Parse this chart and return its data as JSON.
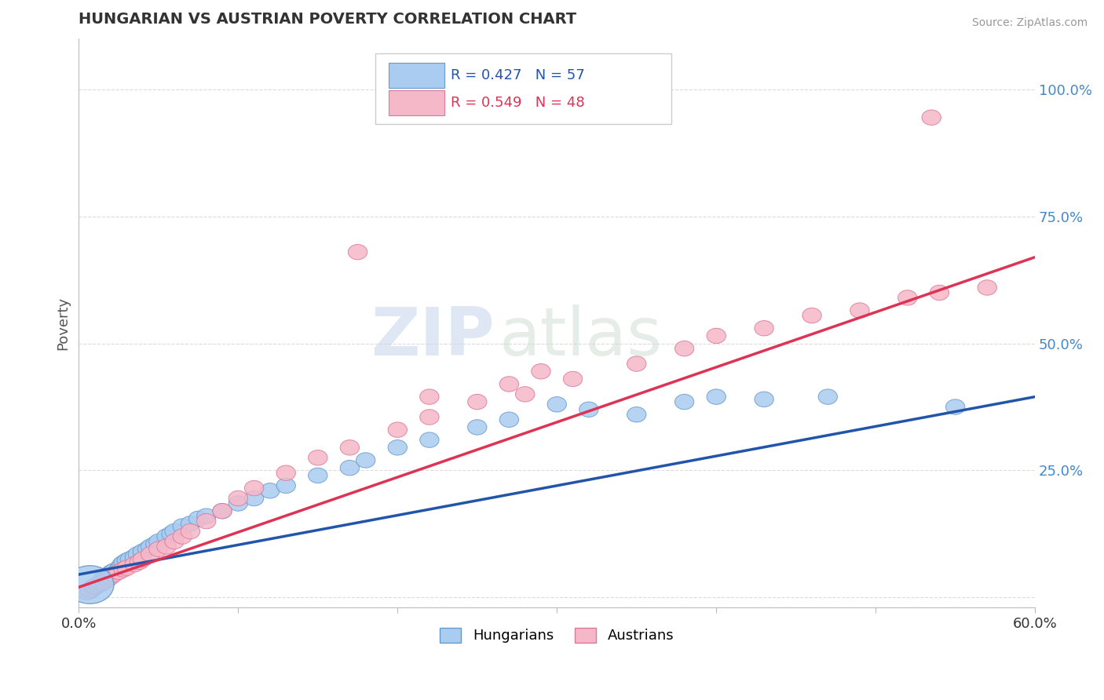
{
  "title": "HUNGARIAN VS AUSTRIAN POVERTY CORRELATION CHART",
  "source": "Source: ZipAtlas.com",
  "ylabel": "Poverty",
  "xlim": [
    0.0,
    0.6
  ],
  "ylim": [
    -0.02,
    1.1
  ],
  "xticks": [
    0.0,
    0.1,
    0.2,
    0.3,
    0.4,
    0.5,
    0.6
  ],
  "xticklabels": [
    "0.0%",
    "",
    "",
    "",
    "",
    "",
    "60.0%"
  ],
  "yticks": [
    0.0,
    0.25,
    0.5,
    0.75,
    1.0
  ],
  "yticklabels": [
    "",
    "25.0%",
    "50.0%",
    "75.0%",
    "100.0%"
  ],
  "hungarian_color": "#aaccf0",
  "austrian_color": "#f5b8c8",
  "hungarian_edge": "#6699cc",
  "austrian_edge": "#dd7799",
  "trend_hungarian_color": "#2255aa",
  "trend_austrian_color": "#dd3355",
  "legend_r_hungarian": "R = 0.427",
  "legend_n_hungarian": "N = 57",
  "legend_r_austrian": "R = 0.549",
  "legend_n_austrian": "N = 48",
  "watermark_zip": "ZIP",
  "watermark_atlas": "atlas",
  "background_color": "#ffffff",
  "grid_color": "#cccccc",
  "hungarian_x": [
    0.005,
    0.007,
    0.008,
    0.009,
    0.01,
    0.011,
    0.012,
    0.013,
    0.014,
    0.015,
    0.016,
    0.017,
    0.018,
    0.019,
    0.02,
    0.021,
    0.022,
    0.025,
    0.026,
    0.027,
    0.028,
    0.03,
    0.032,
    0.035,
    0.037,
    0.04,
    0.043,
    0.045,
    0.048,
    0.05,
    0.055,
    0.058,
    0.06,
    0.065,
    0.07,
    0.075,
    0.08,
    0.09,
    0.1,
    0.11,
    0.12,
    0.13,
    0.15,
    0.17,
    0.18,
    0.2,
    0.22,
    0.25,
    0.27,
    0.3,
    0.32,
    0.35,
    0.38,
    0.4,
    0.43,
    0.47,
    0.55
  ],
  "hungarian_y": [
    0.01,
    0.012,
    0.015,
    0.018,
    0.02,
    0.022,
    0.025,
    0.025,
    0.03,
    0.035,
    0.038,
    0.04,
    0.042,
    0.045,
    0.048,
    0.05,
    0.052,
    0.055,
    0.06,
    0.065,
    0.068,
    0.072,
    0.075,
    0.08,
    0.085,
    0.09,
    0.095,
    0.1,
    0.105,
    0.11,
    0.12,
    0.125,
    0.13,
    0.14,
    0.145,
    0.155,
    0.16,
    0.17,
    0.185,
    0.195,
    0.21,
    0.22,
    0.24,
    0.255,
    0.27,
    0.295,
    0.31,
    0.335,
    0.35,
    0.38,
    0.37,
    0.36,
    0.385,
    0.395,
    0.39,
    0.395,
    0.375
  ],
  "austrian_x": [
    0.005,
    0.007,
    0.009,
    0.01,
    0.012,
    0.014,
    0.016,
    0.018,
    0.02,
    0.022,
    0.025,
    0.028,
    0.03,
    0.035,
    0.038,
    0.04,
    0.045,
    0.05,
    0.055,
    0.06,
    0.065,
    0.07,
    0.08,
    0.09,
    0.1,
    0.11,
    0.13,
    0.15,
    0.17,
    0.2,
    0.22,
    0.25,
    0.28,
    0.31,
    0.35,
    0.38,
    0.4,
    0.43,
    0.46,
    0.49,
    0.52,
    0.54,
    0.57,
    0.22,
    0.27,
    0.29,
    0.175,
    0.535
  ],
  "austrian_y": [
    0.01,
    0.015,
    0.02,
    0.022,
    0.025,
    0.028,
    0.03,
    0.035,
    0.04,
    0.045,
    0.05,
    0.055,
    0.058,
    0.065,
    0.07,
    0.075,
    0.085,
    0.095,
    0.1,
    0.11,
    0.12,
    0.13,
    0.15,
    0.17,
    0.195,
    0.215,
    0.245,
    0.275,
    0.295,
    0.33,
    0.355,
    0.385,
    0.4,
    0.43,
    0.46,
    0.49,
    0.515,
    0.53,
    0.555,
    0.565,
    0.59,
    0.6,
    0.61,
    0.395,
    0.42,
    0.445,
    0.68,
    0.945
  ],
  "trend_h_x0": 0.0,
  "trend_h_y0": 0.045,
  "trend_h_x1": 0.6,
  "trend_h_y1": 0.395,
  "trend_a_x0": 0.0,
  "trend_a_y0": 0.02,
  "trend_a_x1": 0.6,
  "trend_a_y1": 0.67
}
